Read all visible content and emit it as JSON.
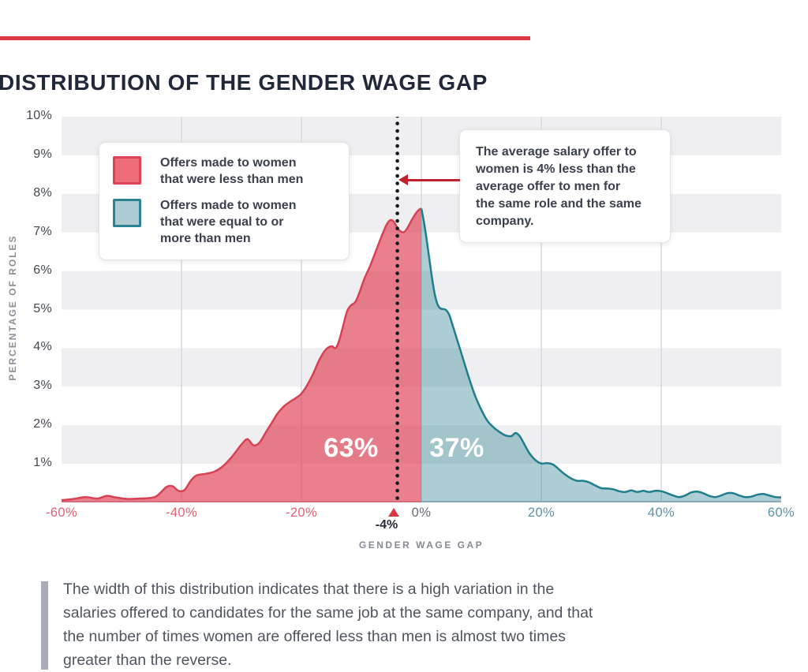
{
  "header": {
    "title": "DISTRIBUTION OF THE GENDER WAGE GAP",
    "rule_color": "#D93843"
  },
  "legend": {
    "items": [
      {
        "name": "women-less",
        "swatch_fill": "#EE6B79",
        "swatch_border": "#DB4456",
        "lines": [
          "Offers made to women",
          "that were less than men"
        ]
      },
      {
        "name": "women-equal-or-more",
        "swatch_fill": "#AECBD1",
        "swatch_border": "#2B8391",
        "lines": [
          "Offers made to women",
          "that were equal to or",
          "more than men"
        ]
      }
    ]
  },
  "callout": {
    "lines": [
      "The average salary offer to",
      "women is 4% less than the",
      "average offer to men for",
      "the same role and the same",
      "company."
    ],
    "arrow_color": "#C1212E"
  },
  "share_labels": {
    "women_less": "63%",
    "women_equal_or_more": "37%"
  },
  "mean_marker": {
    "label": "-4%",
    "triangle_color": "#D93843"
  },
  "axes": {
    "y_title": "PERCENTAGE OF ROLES",
    "x_title": "GENDER WAGE GAP"
  },
  "footnote": {
    "lines": [
      "The width of this distribution indicates that there is a high variation in the",
      "salaries offered to candidates for the same job at the same company, and that",
      "the number of times women are offered less than men is almost two times",
      "greater than the reverse."
    ]
  },
  "chart_data": {
    "type": "area",
    "title": "DISTRIBUTION OF THE GENDER WAGE GAP",
    "xlabel": "GENDER WAGE GAP",
    "ylabel": "PERCENTAGE OF ROLES",
    "xlim": [
      -60,
      60
    ],
    "ylim": [
      0,
      10
    ],
    "band_color": "#EFEFF1",
    "bands": [
      [
        1,
        2
      ],
      [
        3,
        4
      ],
      [
        5,
        6
      ],
      [
        7,
        8
      ],
      [
        9,
        10
      ]
    ],
    "gridline_color": "#D9D9DE",
    "x_gridlines": [
      -40,
      -20,
      0,
      20,
      40
    ],
    "baseline_color": "#C7C7CD",
    "mean_line_x": -4,
    "mean_line_color": "#17191E",
    "x_ticks": [
      {
        "value": -60,
        "label": "-60%",
        "tone": "negative"
      },
      {
        "value": -40,
        "label": "-40%",
        "tone": "negative"
      },
      {
        "value": -20,
        "label": "-20%",
        "tone": "negative"
      },
      {
        "value": 0,
        "label": "0%",
        "tone": "zero"
      },
      {
        "value": 20,
        "label": "20%",
        "tone": "positive"
      },
      {
        "value": 40,
        "label": "40%",
        "tone": "positive"
      },
      {
        "value": 60,
        "label": "60%",
        "tone": "positive"
      }
    ],
    "y_ticks": [
      {
        "value": 10,
        "label": "10%"
      },
      {
        "value": 9,
        "label": "9%"
      },
      {
        "value": 8,
        "label": "8%"
      },
      {
        "value": 7,
        "label": "7%"
      },
      {
        "value": 6,
        "label": "6%"
      },
      {
        "value": 5,
        "label": "5%"
      },
      {
        "value": 4,
        "label": "4%"
      },
      {
        "value": 3,
        "label": "3%"
      },
      {
        "value": 2,
        "label": "2%"
      },
      {
        "value": 1,
        "label": "1%"
      }
    ],
    "series": [
      {
        "name": "Offers made to women that were less than men",
        "share": "63%",
        "fill": "rgba(222,60,80,0.65)",
        "stroke": "#D64254",
        "points": [
          [
            -60,
            0.06
          ],
          [
            -58,
            0.09
          ],
          [
            -56,
            0.14
          ],
          [
            -54,
            0.1
          ],
          [
            -52.5,
            0.17
          ],
          [
            -51,
            0.13
          ],
          [
            -49,
            0.09
          ],
          [
            -47,
            0.1
          ],
          [
            -45,
            0.12
          ],
          [
            -44,
            0.18
          ],
          [
            -42.5,
            0.4
          ],
          [
            -41.5,
            0.42
          ],
          [
            -40.5,
            0.3
          ],
          [
            -39.5,
            0.32
          ],
          [
            -38.5,
            0.55
          ],
          [
            -37.5,
            0.7
          ],
          [
            -36,
            0.74
          ],
          [
            -34.5,
            0.8
          ],
          [
            -33,
            0.95
          ],
          [
            -31.5,
            1.2
          ],
          [
            -30,
            1.5
          ],
          [
            -29,
            1.64
          ],
          [
            -28,
            1.48
          ],
          [
            -27,
            1.55
          ],
          [
            -26,
            1.8
          ],
          [
            -25,
            2.05
          ],
          [
            -24,
            2.3
          ],
          [
            -23,
            2.48
          ],
          [
            -22,
            2.6
          ],
          [
            -21,
            2.7
          ],
          [
            -20,
            2.82
          ],
          [
            -19,
            3.05
          ],
          [
            -18,
            3.35
          ],
          [
            -17,
            3.7
          ],
          [
            -16,
            3.95
          ],
          [
            -15,
            4.05
          ],
          [
            -14.3,
            4.0
          ],
          [
            -13.7,
            4.2
          ],
          [
            -13,
            4.6
          ],
          [
            -12.4,
            4.95
          ],
          [
            -11.8,
            5.1
          ],
          [
            -11,
            5.2
          ],
          [
            -10.3,
            5.45
          ],
          [
            -9.5,
            5.8
          ],
          [
            -8.5,
            6.15
          ],
          [
            -7.5,
            6.55
          ],
          [
            -6.5,
            6.95
          ],
          [
            -5.8,
            7.2
          ],
          [
            -5.2,
            7.32
          ],
          [
            -4.6,
            7.28
          ],
          [
            -4,
            7.12
          ],
          [
            -3.4,
            7.02
          ],
          [
            -2.8,
            7.02
          ],
          [
            -2.2,
            7.15
          ],
          [
            -1.5,
            7.35
          ],
          [
            -0.8,
            7.52
          ],
          [
            -0.3,
            7.6
          ],
          [
            0,
            7.62
          ]
        ]
      },
      {
        "name": "Offers made to women that were equal to or more than men",
        "share": "37%",
        "fill": "rgba(36,126,141,0.38)",
        "stroke": "#1F7E8C",
        "points": [
          [
            0,
            7.62
          ],
          [
            0.4,
            7.3
          ],
          [
            0.8,
            6.9
          ],
          [
            1.3,
            6.35
          ],
          [
            1.8,
            5.8
          ],
          [
            2.3,
            5.35
          ],
          [
            2.8,
            5.1
          ],
          [
            3.3,
            5.02
          ],
          [
            4,
            5.0
          ],
          [
            4.6,
            4.88
          ],
          [
            5.2,
            4.6
          ],
          [
            6,
            4.2
          ],
          [
            7,
            3.7
          ],
          [
            8,
            3.2
          ],
          [
            9,
            2.75
          ],
          [
            10,
            2.4
          ],
          [
            11,
            2.12
          ],
          [
            12,
            1.95
          ],
          [
            13,
            1.83
          ],
          [
            14,
            1.74
          ],
          [
            15,
            1.72
          ],
          [
            15.7,
            1.8
          ],
          [
            16.4,
            1.72
          ],
          [
            17.2,
            1.5
          ],
          [
            18,
            1.28
          ],
          [
            19,
            1.1
          ],
          [
            20,
            1.01
          ],
          [
            21,
            1.02
          ],
          [
            22,
            0.98
          ],
          [
            23,
            0.85
          ],
          [
            24,
            0.72
          ],
          [
            25,
            0.62
          ],
          [
            26,
            0.56
          ],
          [
            27,
            0.56
          ],
          [
            28,
            0.52
          ],
          [
            29,
            0.44
          ],
          [
            30,
            0.37
          ],
          [
            31,
            0.36
          ],
          [
            32,
            0.34
          ],
          [
            33,
            0.29
          ],
          [
            34,
            0.27
          ],
          [
            35,
            0.31
          ],
          [
            36,
            0.27
          ],
          [
            37,
            0.3
          ],
          [
            38,
            0.27
          ],
          [
            39,
            0.3
          ],
          [
            40,
            0.29
          ],
          [
            41,
            0.24
          ],
          [
            42,
            0.18
          ],
          [
            43,
            0.14
          ],
          [
            44,
            0.18
          ],
          [
            45,
            0.26
          ],
          [
            46,
            0.28
          ],
          [
            47,
            0.24
          ],
          [
            48,
            0.17
          ],
          [
            49,
            0.14
          ],
          [
            50,
            0.18
          ],
          [
            51,
            0.24
          ],
          [
            52,
            0.24
          ],
          [
            53,
            0.18
          ],
          [
            54,
            0.14
          ],
          [
            55,
            0.15
          ],
          [
            56,
            0.2
          ],
          [
            57,
            0.22
          ],
          [
            58,
            0.18
          ],
          [
            59,
            0.14
          ],
          [
            60,
            0.13
          ]
        ]
      }
    ]
  }
}
